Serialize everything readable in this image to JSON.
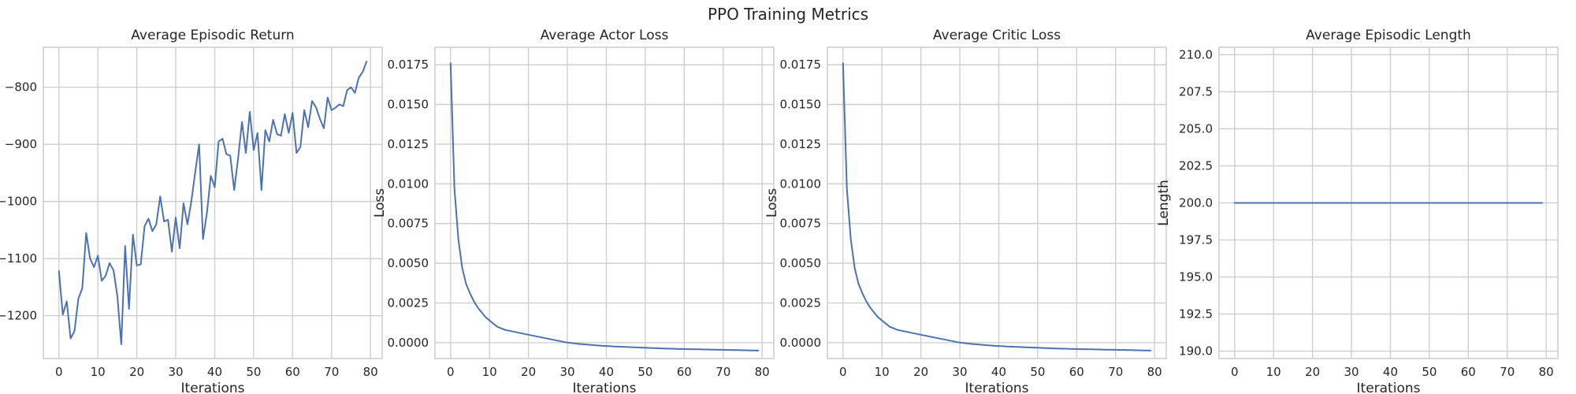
{
  "figure": {
    "title": "PPO Training Metrics",
    "line_color": "#4c72b0",
    "grid": true
  },
  "chart_data": [
    {
      "type": "line",
      "title": "Average Episodic Return",
      "xlabel": "Iterations",
      "ylabel": "",
      "xlim": [
        -4,
        83
      ],
      "ylim": [
        -1275,
        -730
      ],
      "xticks": [
        0,
        10,
        20,
        30,
        40,
        50,
        60,
        70,
        80
      ],
      "yticks": [
        -1200,
        -1100,
        -1000,
        -900,
        -800
      ],
      "ytick_labels": [
        "−1200",
        "−1100",
        "−1000",
        "−900",
        "−800"
      ],
      "x": [
        0,
        1,
        2,
        3,
        4,
        5,
        6,
        7,
        8,
        9,
        10,
        11,
        12,
        13,
        14,
        15,
        16,
        17,
        18,
        19,
        20,
        21,
        22,
        23,
        24,
        25,
        26,
        27,
        28,
        29,
        30,
        31,
        32,
        33,
        34,
        35,
        36,
        37,
        38,
        39,
        40,
        41,
        42,
        43,
        44,
        45,
        46,
        47,
        48,
        49,
        50,
        51,
        52,
        53,
        54,
        55,
        56,
        57,
        58,
        59,
        60,
        61,
        62,
        63,
        64,
        65,
        66,
        67,
        68,
        69,
        70,
        71,
        72,
        73,
        74,
        75,
        76,
        77,
        78,
        79
      ],
      "y": [
        -1122,
        -1198,
        -1175,
        -1240,
        -1227,
        -1170,
        -1152,
        -1055,
        -1100,
        -1115,
        -1095,
        -1139,
        -1130,
        -1108,
        -1120,
        -1165,
        -1250,
        -1078,
        -1188,
        -1058,
        -1112,
        -1110,
        -1043,
        -1030,
        -1052,
        -1040,
        -991,
        -1035,
        -1032,
        -1088,
        -1028,
        -1082,
        -1003,
        -1040,
        -1000,
        -948,
        -900,
        -1066,
        -1020,
        -955,
        -975,
        -895,
        -890,
        -917,
        -920,
        -980,
        -925,
        -861,
        -915,
        -843,
        -910,
        -880,
        -980,
        -875,
        -895,
        -857,
        -882,
        -885,
        -847,
        -880,
        -845,
        -915,
        -905,
        -840,
        -870,
        -824,
        -835,
        -855,
        -872,
        -818,
        -840,
        -836,
        -830,
        -833,
        -805,
        -800,
        -810,
        -783,
        -773,
        -755
      ]
    },
    {
      "type": "line",
      "title": "Average Actor Loss",
      "xlabel": "Iterations",
      "ylabel": "Loss",
      "xlim": [
        -4,
        83
      ],
      "ylim": [
        -0.001,
        0.0186
      ],
      "xticks": [
        0,
        10,
        20,
        30,
        40,
        50,
        60,
        70,
        80
      ],
      "yticks": [
        0,
        0.0025,
        0.005,
        0.0075,
        0.01,
        0.0125,
        0.015,
        0.0175
      ],
      "ytick_labels": [
        "0.0000",
        "0.0025",
        "0.0050",
        "0.0075",
        "0.0100",
        "0.0125",
        "0.0150",
        "0.0175"
      ],
      "x": [
        0,
        1,
        2,
        3,
        4,
        5,
        6,
        7,
        8,
        9,
        10,
        11,
        12,
        13,
        14,
        15,
        16,
        17,
        18,
        19,
        20,
        21,
        22,
        23,
        24,
        25,
        26,
        27,
        28,
        29,
        30,
        31,
        32,
        33,
        34,
        35,
        36,
        37,
        38,
        39,
        40,
        41,
        42,
        43,
        44,
        45,
        46,
        47,
        48,
        49,
        50,
        51,
        52,
        53,
        54,
        55,
        56,
        57,
        58,
        59,
        60,
        61,
        62,
        63,
        64,
        65,
        66,
        67,
        68,
        69,
        70,
        71,
        72,
        73,
        74,
        75,
        76,
        77,
        78,
        79
      ],
      "y": [
        0.0176,
        0.0097,
        0.0065,
        0.0047,
        0.0037,
        0.0031,
        0.0026,
        0.0022,
        0.0019,
        0.0016,
        0.0014,
        0.0012,
        0.001,
        0.0009,
        0.0008,
        0.00075,
        0.0007,
        0.00065,
        0.0006,
        0.00055,
        0.0005,
        0.00045,
        0.0004,
        0.00035,
        0.0003,
        0.00025,
        0.0002,
        0.00015,
        0.0001,
        5e-05,
        0.0,
        -2e-05,
        -5e-05,
        -8e-05,
        -0.0001,
        -0.00012,
        -0.00014,
        -0.00016,
        -0.00018,
        -0.0002,
        -0.00021,
        -0.00022,
        -0.00024,
        -0.00025,
        -0.00026,
        -0.00027,
        -0.00028,
        -0.00029,
        -0.0003,
        -0.00031,
        -0.00032,
        -0.00033,
        -0.00034,
        -0.00035,
        -0.00036,
        -0.00037,
        -0.00038,
        -0.00038,
        -0.00039,
        -0.0004,
        -0.0004,
        -0.00041,
        -0.00041,
        -0.00042,
        -0.00042,
        -0.00043,
        -0.00043,
        -0.00044,
        -0.00044,
        -0.00045,
        -0.00045,
        -0.00046,
        -0.00046,
        -0.00047,
        -0.00047,
        -0.00048,
        -0.00048,
        -0.00049,
        -0.00049,
        -0.0005
      ]
    },
    {
      "type": "line",
      "title": "Average Critic Loss",
      "xlabel": "Iterations",
      "ylabel": "Loss",
      "xlim": [
        -4,
        83
      ],
      "ylim": [
        -0.001,
        0.0186
      ],
      "xticks": [
        0,
        10,
        20,
        30,
        40,
        50,
        60,
        70,
        80
      ],
      "yticks": [
        0,
        0.0025,
        0.005,
        0.0075,
        0.01,
        0.0125,
        0.015,
        0.0175
      ],
      "ytick_labels": [
        "0.0000",
        "0.0025",
        "0.0050",
        "0.0075",
        "0.0100",
        "0.0125",
        "0.0150",
        "0.0175"
      ],
      "x": [
        0,
        1,
        2,
        3,
        4,
        5,
        6,
        7,
        8,
        9,
        10,
        11,
        12,
        13,
        14,
        15,
        16,
        17,
        18,
        19,
        20,
        21,
        22,
        23,
        24,
        25,
        26,
        27,
        28,
        29,
        30,
        31,
        32,
        33,
        34,
        35,
        36,
        37,
        38,
        39,
        40,
        41,
        42,
        43,
        44,
        45,
        46,
        47,
        48,
        49,
        50,
        51,
        52,
        53,
        54,
        55,
        56,
        57,
        58,
        59,
        60,
        61,
        62,
        63,
        64,
        65,
        66,
        67,
        68,
        69,
        70,
        71,
        72,
        73,
        74,
        75,
        76,
        77,
        78,
        79
      ],
      "y": [
        0.0176,
        0.0097,
        0.0065,
        0.0047,
        0.0037,
        0.0031,
        0.0026,
        0.0022,
        0.0019,
        0.0016,
        0.0014,
        0.0012,
        0.001,
        0.0009,
        0.0008,
        0.00075,
        0.0007,
        0.00065,
        0.0006,
        0.00055,
        0.0005,
        0.00045,
        0.0004,
        0.00035,
        0.0003,
        0.00025,
        0.0002,
        0.00015,
        0.0001,
        5e-05,
        0.0,
        -2e-05,
        -5e-05,
        -8e-05,
        -0.0001,
        -0.00012,
        -0.00014,
        -0.00016,
        -0.00018,
        -0.0002,
        -0.00021,
        -0.00022,
        -0.00024,
        -0.00025,
        -0.00026,
        -0.00027,
        -0.00028,
        -0.00029,
        -0.0003,
        -0.00031,
        -0.00032,
        -0.00033,
        -0.00034,
        -0.00035,
        -0.00036,
        -0.00037,
        -0.00038,
        -0.00038,
        -0.00039,
        -0.0004,
        -0.0004,
        -0.00041,
        -0.00041,
        -0.00042,
        -0.00042,
        -0.00043,
        -0.00043,
        -0.00044,
        -0.00044,
        -0.00045,
        -0.00045,
        -0.00046,
        -0.00046,
        -0.00047,
        -0.00047,
        -0.00048,
        -0.00048,
        -0.00049,
        -0.00049,
        -0.0005
      ]
    },
    {
      "type": "line",
      "title": "Average Episodic Length",
      "xlabel": "Iterations",
      "ylabel": "Length",
      "xlim": [
        -4,
        83
      ],
      "ylim": [
        189.5,
        210.5
      ],
      "xticks": [
        0,
        10,
        20,
        30,
        40,
        50,
        60,
        70,
        80
      ],
      "yticks": [
        190,
        192.5,
        195,
        197.5,
        200,
        202.5,
        205,
        207.5,
        210
      ],
      "ytick_labels": [
        "190.0",
        "192.5",
        "195.0",
        "197.5",
        "200.0",
        "202.5",
        "205.0",
        "207.5",
        "210.0"
      ],
      "x": [
        0,
        1,
        2,
        3,
        4,
        5,
        6,
        7,
        8,
        9,
        10,
        11,
        12,
        13,
        14,
        15,
        16,
        17,
        18,
        19,
        20,
        21,
        22,
        23,
        24,
        25,
        26,
        27,
        28,
        29,
        30,
        31,
        32,
        33,
        34,
        35,
        36,
        37,
        38,
        39,
        40,
        41,
        42,
        43,
        44,
        45,
        46,
        47,
        48,
        49,
        50,
        51,
        52,
        53,
        54,
        55,
        56,
        57,
        58,
        59,
        60,
        61,
        62,
        63,
        64,
        65,
        66,
        67,
        68,
        69,
        70,
        71,
        72,
        73,
        74,
        75,
        76,
        77,
        78,
        79
      ],
      "y": [
        200,
        200,
        200,
        200,
        200,
        200,
        200,
        200,
        200,
        200,
        200,
        200,
        200,
        200,
        200,
        200,
        200,
        200,
        200,
        200,
        200,
        200,
        200,
        200,
        200,
        200,
        200,
        200,
        200,
        200,
        200,
        200,
        200,
        200,
        200,
        200,
        200,
        200,
        200,
        200,
        200,
        200,
        200,
        200,
        200,
        200,
        200,
        200,
        200,
        200,
        200,
        200,
        200,
        200,
        200,
        200,
        200,
        200,
        200,
        200,
        200,
        200,
        200,
        200,
        200,
        200,
        200,
        200,
        200,
        200,
        200,
        200,
        200,
        200,
        200,
        200,
        200,
        200,
        200,
        200
      ]
    }
  ]
}
